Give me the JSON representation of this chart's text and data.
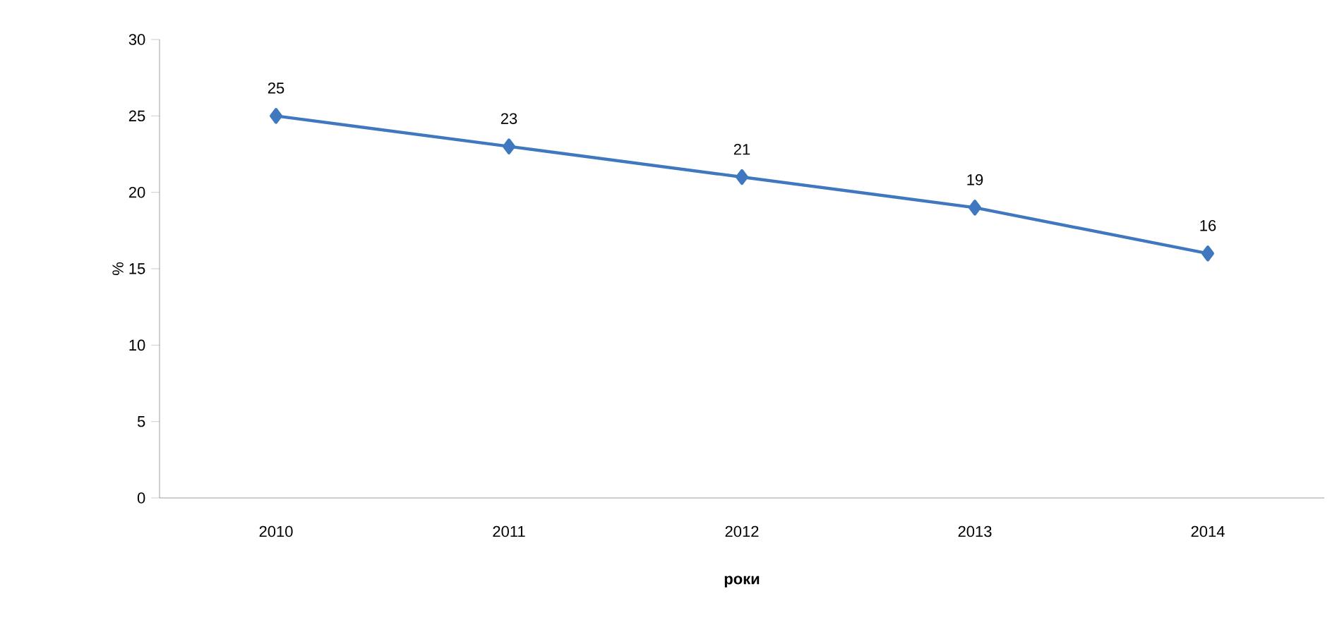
{
  "chart_data": {
    "type": "line",
    "xlabel": "роки",
    "ylabel": "%",
    "categories": [
      "2010",
      "2011",
      "2012",
      "2013",
      "2014"
    ],
    "series": [
      {
        "color": "#3f78be",
        "values": [
          25,
          23,
          21,
          19,
          16
        ]
      }
    ],
    "ylim": [
      0,
      30
    ],
    "yticks": [
      0,
      5,
      10,
      15,
      20,
      25,
      30
    ],
    "marker": "diamond",
    "data_labels": true,
    "grid": false,
    "legend": false
  }
}
